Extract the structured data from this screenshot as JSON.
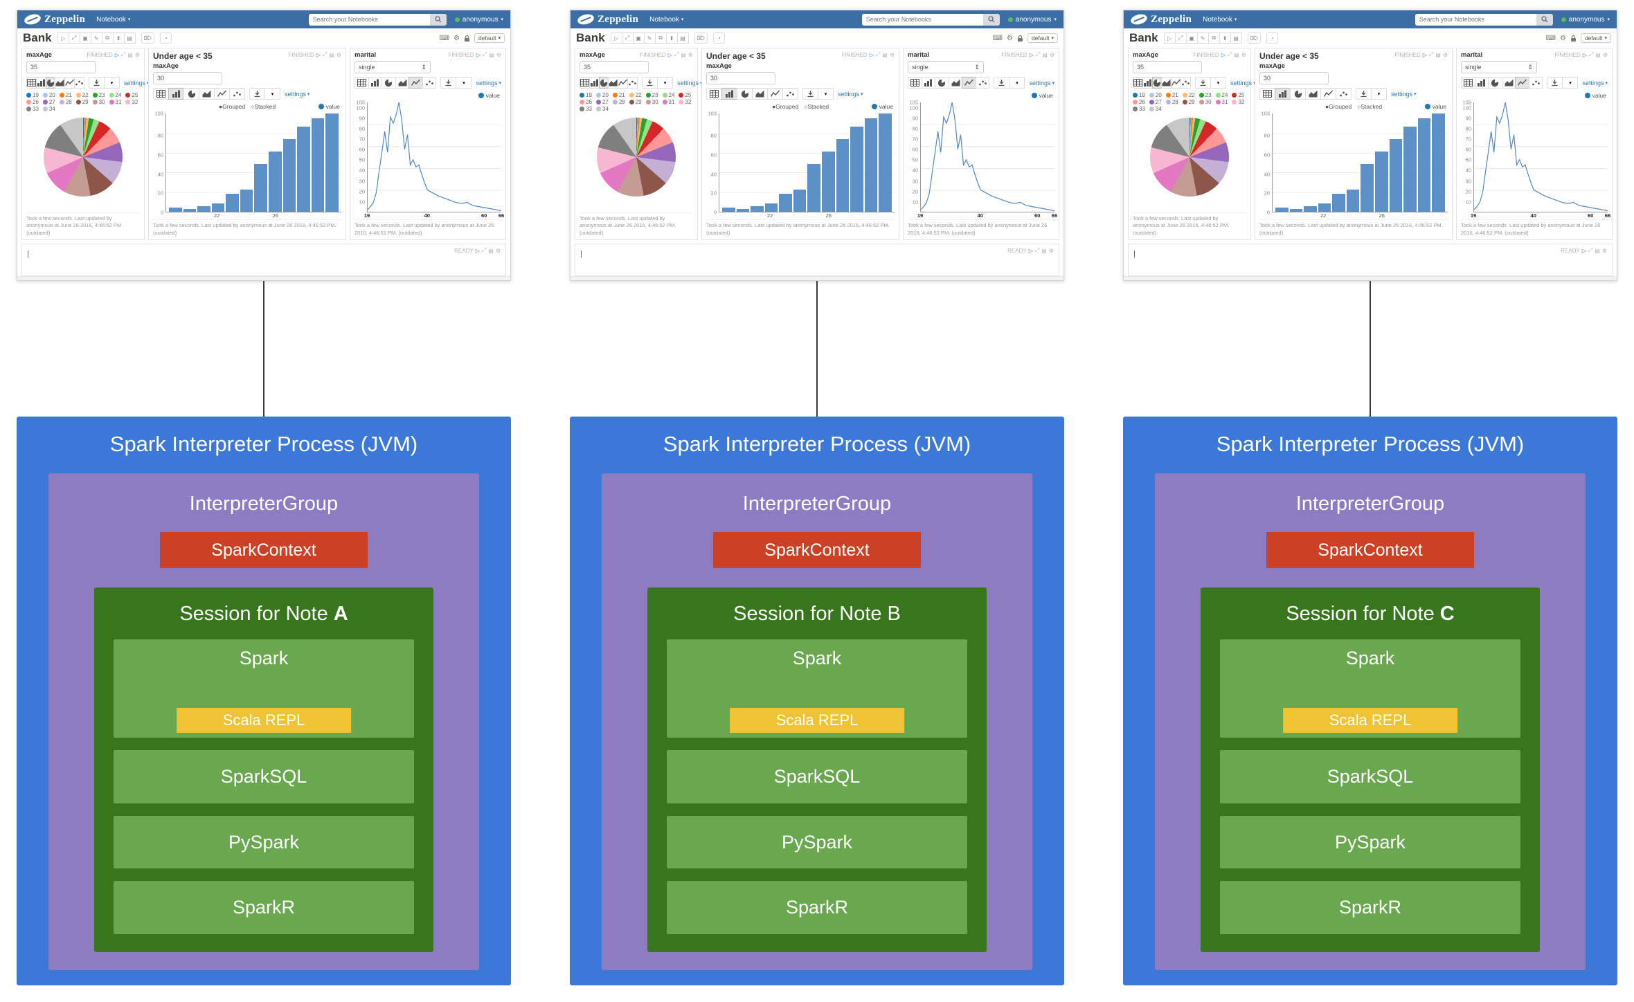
{
  "colors": {
    "navbar": "#3a6ea5",
    "process_box": "#3c78d8",
    "group_box": "#8e7cc3",
    "context_box": "#cc4125",
    "session_box": "#38761d",
    "interpreter_row": "#6aa84f",
    "repl_box": "#f1c232",
    "bar_color": "#5b91c6",
    "line_color": "#4f88c5",
    "link_color": "#337ab7",
    "user_dot": "#5cb85c"
  },
  "icons": {
    "play": "▷",
    "fullscreen": "⤢",
    "output": "▤",
    "gear": "⚙",
    "commit": "▣",
    "erase": "✎",
    "clone": "⧉",
    "export": "⬆",
    "trash": "⌦",
    "scheduler": "◔",
    "keyboard": "⌨",
    "caret": "▾",
    "grouped_radio": "●",
    "stacked_radio": "○",
    "select_arrows": "⇕",
    "cursor": "|"
  },
  "screenshot": {
    "navbar": {
      "brand": "Zeppelin",
      "menu": "Notebook",
      "search_placeholder": "Search your Notebooks",
      "user": "anonymous"
    },
    "note": {
      "title": "Bank",
      "interpreter_binding": "default"
    },
    "status_finished": "FINISHED",
    "status_ready": "READY",
    "settings_label": "settings",
    "footer_note": "Took a few seconds. Last updated by anonymous at June 26 2016, 4:46:52 PM. (outdated)",
    "panels": {
      "pie": {
        "field_label": "maxAge",
        "field_value": "35"
      },
      "bar": {
        "title": "Under age < 35",
        "field_label": "maxAge",
        "field_value": "30",
        "grouped_label": "Grouped",
        "stacked_label": "Stacked",
        "legend_label": "value"
      },
      "line": {
        "field_label": "marital",
        "field_value": "single",
        "legend_label": "value"
      }
    }
  },
  "chart_data": [
    {
      "type": "pie",
      "title": "maxAge pie (age distribution, maxAge = 35)",
      "labels": [
        19,
        20,
        21,
        22,
        23,
        24,
        25,
        26,
        27,
        28,
        29,
        30,
        31,
        32,
        33,
        34
      ],
      "values": [
        4,
        3,
        6,
        9,
        19,
        23,
        50,
        63,
        76,
        89,
        98,
        103,
        97,
        100,
        105,
        92
      ],
      "colors": [
        "#1f77b4",
        "#aec7e8",
        "#ff7f0e",
        "#ffbb78",
        "#2ca02c",
        "#98df8a",
        "#d62728",
        "#ff9896",
        "#9467bd",
        "#c5b0d5",
        "#8c564b",
        "#c49c94",
        "#e377c2",
        "#f7b6d2",
        "#7f7f7f",
        "#c7c7c7"
      ],
      "legend_position": "top"
    },
    {
      "type": "bar",
      "title": "Under age < 35",
      "categories": [
        19,
        20,
        21,
        22,
        23,
        24,
        25,
        26,
        27,
        28,
        29,
        30
      ],
      "values": [
        4,
        3,
        6,
        9,
        19,
        23,
        50,
        63,
        76,
        89,
        98,
        103
      ],
      "series_name": "value",
      "ylim": [
        0,
        103
      ],
      "yticks": [
        103,
        80,
        60,
        40,
        20,
        0
      ],
      "xticks": [
        22,
        26
      ],
      "grid": true
    },
    {
      "type": "line",
      "title": "marital = single, count by age",
      "series_name": "value",
      "x": [
        19,
        20,
        21,
        22,
        23,
        24,
        25,
        26,
        27,
        28,
        29,
        30,
        31,
        32,
        33,
        34,
        35,
        36,
        37,
        38,
        39,
        40,
        42,
        44,
        46,
        48,
        50,
        52,
        54,
        56,
        58,
        60,
        62,
        64,
        66
      ],
      "y": [
        2,
        5,
        9,
        18,
        38,
        57,
        77,
        57,
        91,
        85,
        93,
        105,
        88,
        60,
        74,
        45,
        50,
        43,
        45,
        36,
        28,
        21,
        18,
        15,
        13,
        11,
        9,
        8,
        9,
        6,
        5,
        4,
        3,
        2,
        1
      ],
      "ylim": [
        0,
        105
      ],
      "yticks": [
        105,
        100,
        90,
        80,
        70,
        60,
        50,
        40,
        30,
        20,
        10
      ],
      "xticks": [
        19,
        40,
        60,
        66
      ],
      "grid": true
    }
  ],
  "diagram": {
    "columns": [
      {
        "process_title": "Spark Interpreter Process (JVM)",
        "group_title": "InterpreterGroup",
        "context_label": "SparkContext",
        "session_title": "Session for Note",
        "session_note": "A",
        "note_bold": true,
        "interpreters": [
          "Spark",
          "SparkSQL",
          "PySpark",
          "SparkR"
        ],
        "repl_label": "Scala REPL"
      },
      {
        "process_title": "Spark Interpreter Process (JVM)",
        "group_title": "InterpreterGroup",
        "context_label": "SparkContext",
        "session_title": "Session for Note",
        "session_note": "B",
        "note_bold": false,
        "interpreters": [
          "Spark",
          "SparkSQL",
          "PySpark",
          "SparkR"
        ],
        "repl_label": "Scala REPL"
      },
      {
        "process_title": "Spark Interpreter Process (JVM)",
        "group_title": "InterpreterGroup",
        "context_label": "SparkContext",
        "session_title": "Session for Note",
        "session_note": "C",
        "note_bold": true,
        "interpreters": [
          "Spark",
          "SparkSQL",
          "PySpark",
          "SparkR"
        ],
        "repl_label": "Scala REPL"
      }
    ]
  }
}
